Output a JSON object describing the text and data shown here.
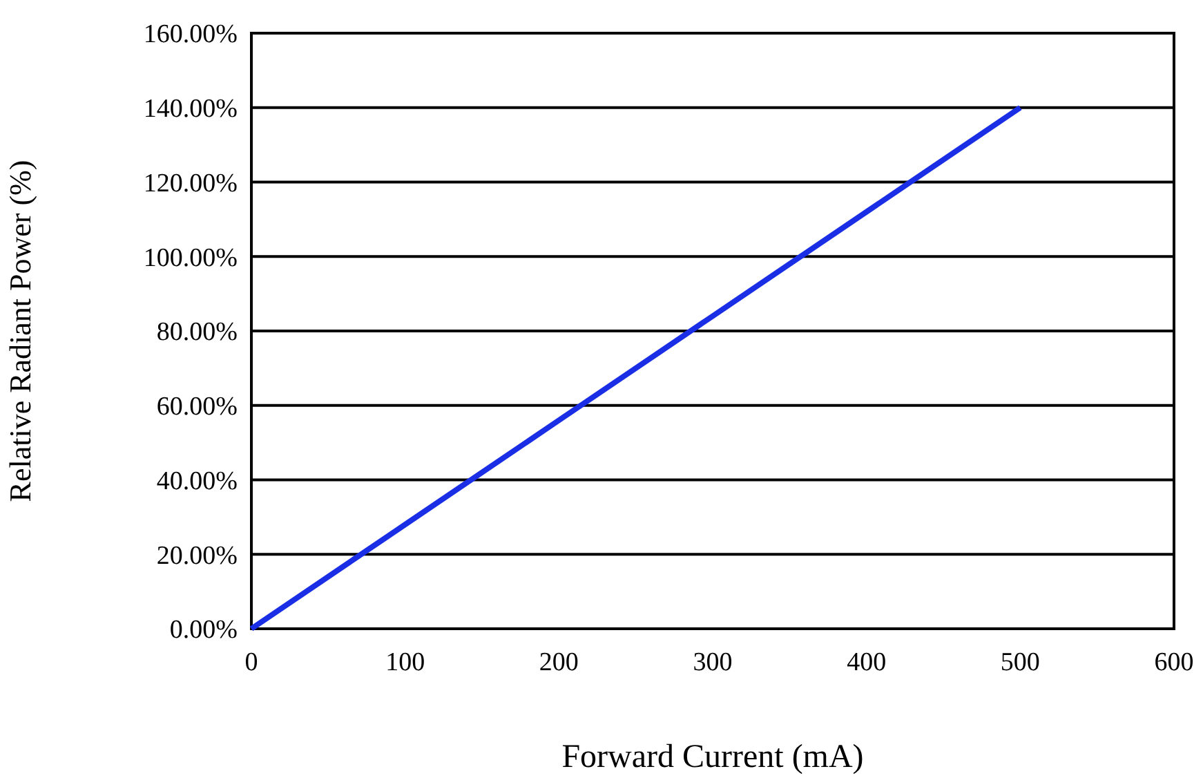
{
  "chart_data": {
    "type": "line",
    "xlabel": "Forward Current (mA)",
    "ylabel": "Relative Radiant Power (%)",
    "x": [
      0,
      100,
      200,
      300,
      400,
      500
    ],
    "series": [
      {
        "color": "#1a2ee6",
        "values": [
          0,
          28,
          56,
          84,
          112,
          140
        ]
      }
    ],
    "xlim": [
      0,
      600
    ],
    "xticks": [
      0,
      100,
      200,
      300,
      400,
      500,
      600
    ],
    "ylim": [
      0,
      160
    ],
    "yticks": [
      {
        "value": 0,
        "label": "0.00%"
      },
      {
        "value": 20,
        "label": "20.00%"
      },
      {
        "value": 40,
        "label": "40.00%"
      },
      {
        "value": 60,
        "label": "60.00%"
      },
      {
        "value": 80,
        "label": "80.00%"
      },
      {
        "value": 100,
        "label": "100.00%"
      },
      {
        "value": 120,
        "label": "120.00%"
      },
      {
        "value": 140,
        "label": "140.00%"
      },
      {
        "value": 160,
        "label": "160.00%"
      }
    ],
    "grid": "y",
    "marker": "none",
    "line_style": "solid"
  }
}
